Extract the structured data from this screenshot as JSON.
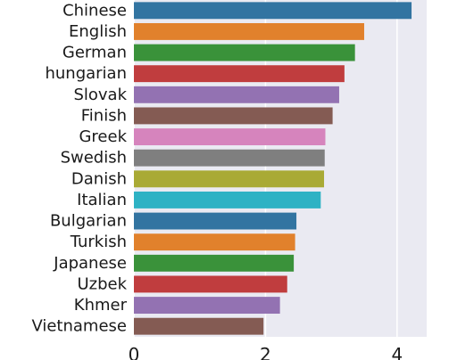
{
  "chart_data": {
    "type": "bar",
    "orientation": "horizontal",
    "title": "",
    "xlabel": "",
    "ylabel": "",
    "categories": [
      "Chinese",
      "English",
      "German",
      "hungarian",
      "Slovak",
      "Finish",
      "Greek",
      "Swedish",
      "Danish",
      "Italian",
      "Bulgarian",
      "Turkish",
      "Japanese",
      "Uzbek",
      "Khmer",
      "Vietnamese"
    ],
    "values": [
      4.22,
      3.5,
      3.36,
      3.2,
      3.12,
      3.02,
      2.91,
      2.9,
      2.89,
      2.84,
      2.47,
      2.45,
      2.43,
      2.33,
      2.22,
      1.97
    ],
    "xlim": [
      0,
      4.45
    ],
    "xticks": [
      0,
      2,
      4
    ],
    "grid": true,
    "legend": "none",
    "colors": [
      "#3274a1",
      "#e1812c",
      "#3a923a",
      "#c03d3e",
      "#9372b2",
      "#845b53",
      "#d684bd",
      "#7f7f7f",
      "#a9aa35",
      "#2eb2c4"
    ],
    "background": "#eaeaf2",
    "gridColor": "#ffffff"
  }
}
